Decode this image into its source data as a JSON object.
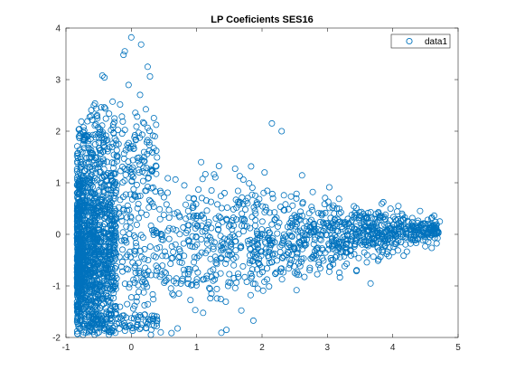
{
  "chart_data": {
    "type": "scatter",
    "title": "LP Coeficients SES16",
    "xlabel": "",
    "ylabel": "",
    "xlim": [
      -1,
      5
    ],
    "ylim": [
      -2,
      4
    ],
    "x_ticks": [
      -1,
      0,
      1,
      2,
      3,
      4,
      5
    ],
    "y_ticks": [
      -2,
      -1,
      0,
      1,
      2,
      3,
      4
    ],
    "grid": false,
    "legend": {
      "placement": "top-right"
    },
    "colors": {
      "series": "#0072BD",
      "axis": "#262626",
      "background": "#ffffff"
    },
    "series": [
      {
        "name": "data1",
        "marker": "circle-open",
        "distribution": "dense cluster near x = -0.8 to -0.4 spanning y = -1.8 to 3; fan-shaped spread to x = 4.8 converging toward y = 0",
        "outliers": [
          {
            "x": 0.0,
            "y": 3.82
          },
          {
            "x": 0.15,
            "y": 3.68
          },
          {
            "x": -0.1,
            "y": 3.55
          },
          {
            "x": -0.12,
            "y": 3.48
          },
          {
            "x": 0.25,
            "y": 3.25
          },
          {
            "x": 2.15,
            "y": 2.15
          },
          {
            "x": 2.3,
            "y": 2.0
          },
          {
            "x": 4.72,
            "y": 0.25
          },
          {
            "x": 4.65,
            "y": 0.1
          },
          {
            "x": 4.5,
            "y": 0.12
          },
          {
            "x": 0.3,
            "y": -1.95
          },
          {
            "x": 0.45,
            "y": -1.9
          }
        ]
      }
    ]
  }
}
